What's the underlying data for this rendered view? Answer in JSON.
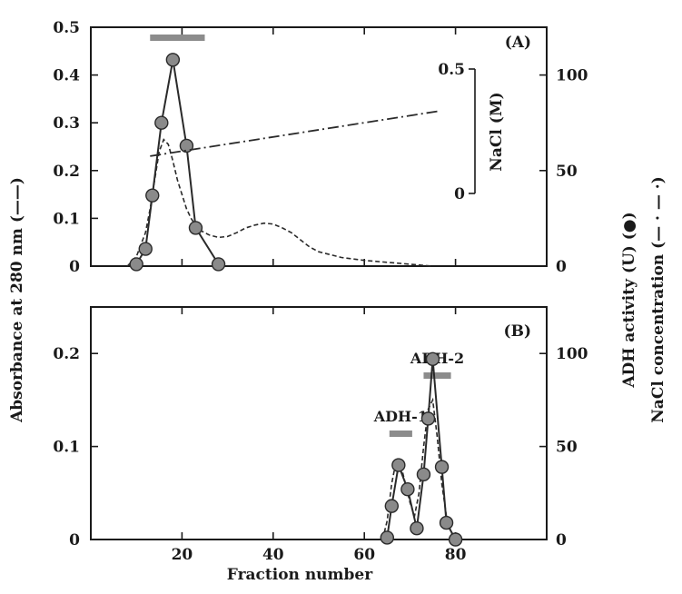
{
  "figure": {
    "y_left_title": "Absorbance at 280 nm (——)",
    "y_right_title_activity": "ADH activity (U) (●)",
    "y_right_title_nacl": "NaCl concentration (— · — ·)",
    "x_title": "Fraction number"
  },
  "chart_data": [
    {
      "panel": "(A)",
      "type": "line",
      "xlim": [
        0,
        100
      ],
      "x_ticks": [
        "20",
        "40",
        "60",
        "80"
      ],
      "ylim_left": [
        0,
        0.5
      ],
      "y_left_ticks": [
        "0",
        "0.1",
        "0.2",
        "0.3",
        "0.4",
        "0.5"
      ],
      "ylim_right": [
        0,
        125
      ],
      "y_right_ticks": [
        "0",
        "50",
        "100"
      ],
      "inset_scale": {
        "label": "NaCl (M)",
        "ticks": [
          "0",
          "0.5"
        ]
      },
      "series": [
        {
          "axis": "left",
          "style": "dashed",
          "x": [
            8,
            10,
            12,
            13,
            14,
            15,
            16,
            17,
            18,
            19,
            20,
            21,
            22,
            23,
            24,
            26,
            28,
            30,
            32,
            34,
            36,
            38,
            40,
            42,
            44,
            46,
            48,
            50,
            55,
            60,
            65,
            70,
            75
          ],
          "y": [
            0,
            0.02,
            0.07,
            0.12,
            0.18,
            0.24,
            0.265,
            0.255,
            0.22,
            0.18,
            0.15,
            0.12,
            0.1,
            0.085,
            0.075,
            0.065,
            0.06,
            0.062,
            0.07,
            0.08,
            0.086,
            0.09,
            0.088,
            0.08,
            0.07,
            0.055,
            0.04,
            0.03,
            0.018,
            0.012,
            0.008,
            0.004,
            0
          ]
        },
        {
          "axis": "right",
          "style": "markers+line",
          "x": [
            10,
            12,
            13.5,
            15.5,
            18,
            21,
            23,
            28
          ],
          "y": [
            1,
            9,
            37,
            75,
            108,
            63,
            20,
            1
          ]
        },
        {
          "axis": "nacl",
          "style": "dash-dot",
          "x": [
            13,
            76
          ],
          "y": [
            0.15,
            0.33
          ]
        }
      ],
      "annotations": [
        {
          "type": "pool-bar",
          "x": [
            13,
            25
          ]
        }
      ]
    },
    {
      "panel": "(B)",
      "type": "line",
      "xlim": [
        0,
        100
      ],
      "x_ticks": [
        "0",
        "20",
        "40",
        "60",
        "80"
      ],
      "ylim_left": [
        0,
        0.25
      ],
      "y_left_ticks": [
        "0",
        "0.1",
        "0.2"
      ],
      "ylim_right": [
        0,
        125
      ],
      "y_right_ticks": [
        "0",
        "50",
        "100"
      ],
      "series": [
        {
          "axis": "left",
          "style": "dashed",
          "x": [
            64,
            65,
            66,
            67,
            68,
            69,
            70,
            71,
            72,
            73,
            74,
            75,
            76,
            77,
            78,
            79,
            80
          ],
          "y": [
            0,
            0.02,
            0.06,
            0.085,
            0.08,
            0.06,
            0.04,
            0.025,
            0.05,
            0.1,
            0.14,
            0.15,
            0.11,
            0.06,
            0.025,
            0.008,
            0
          ]
        },
        {
          "axis": "right",
          "style": "markers+line",
          "x": [
            65,
            66,
            67.5,
            69.5,
            71.5,
            73,
            74,
            75,
            77,
            78,
            80
          ],
          "y": [
            1,
            18,
            40,
            27,
            6,
            35,
            65,
            97,
            39,
            9,
            0
          ]
        }
      ],
      "annotations": [
        {
          "type": "pool-bar",
          "x": [
            65.5,
            70.5
          ],
          "label": "ADH-1"
        },
        {
          "type": "pool-bar",
          "x": [
            73,
            79
          ],
          "label": "ADH-2"
        }
      ]
    }
  ]
}
